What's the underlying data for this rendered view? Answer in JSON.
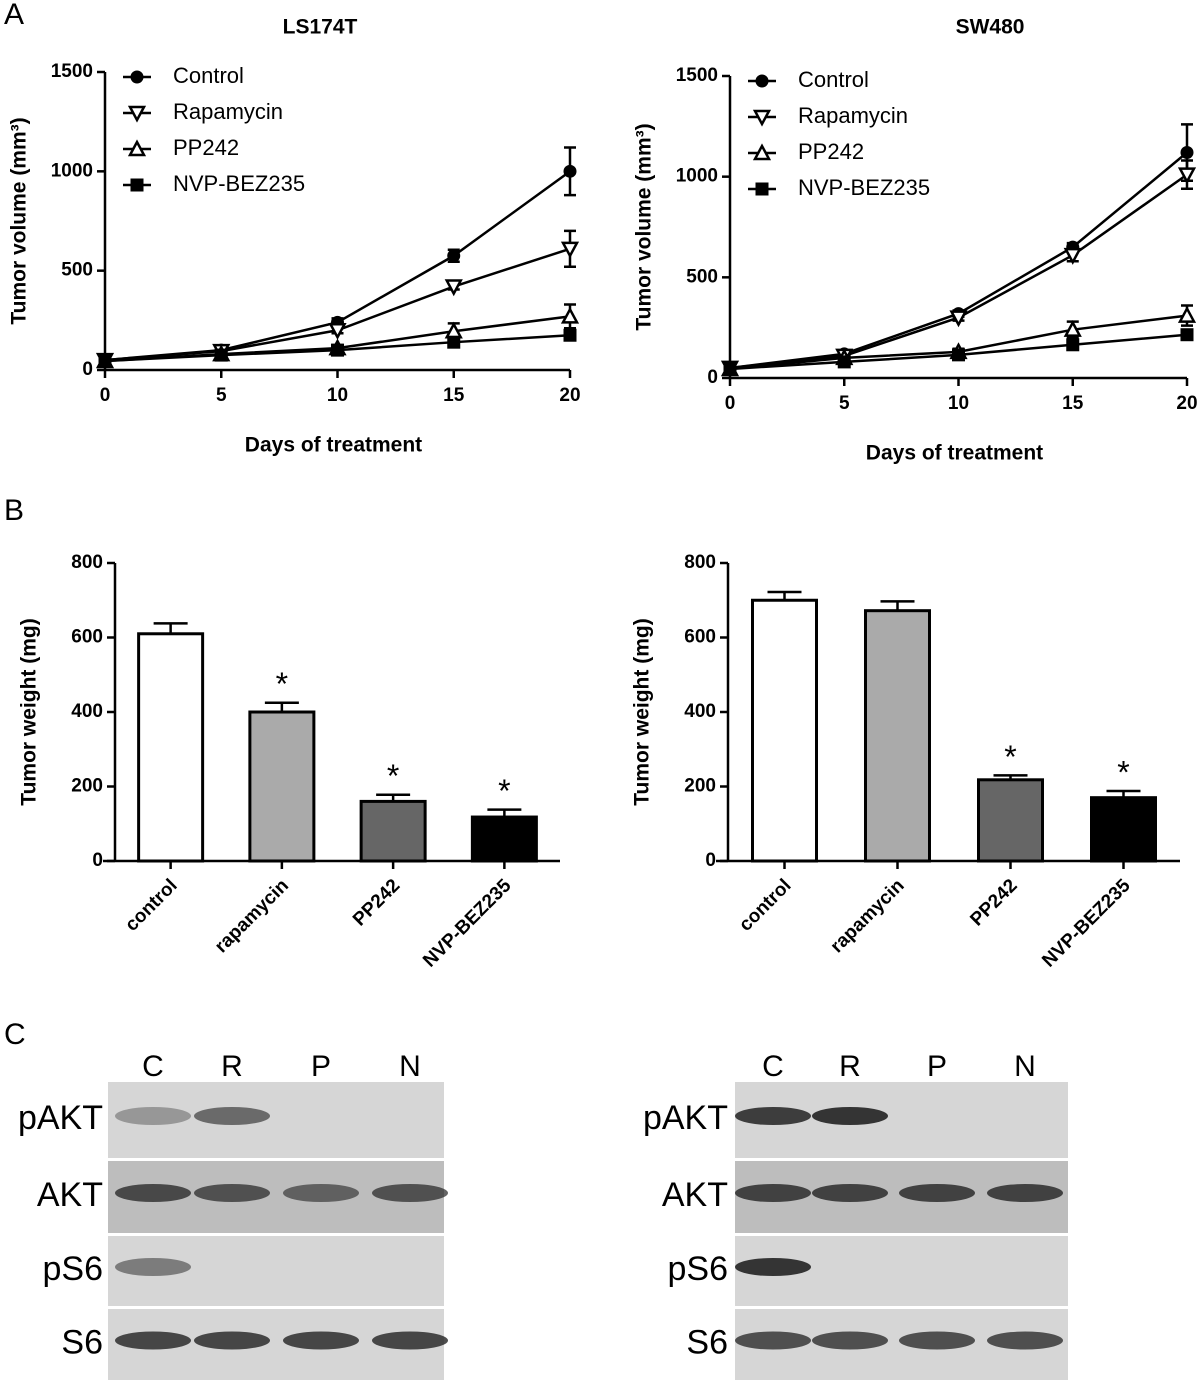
{
  "panel_labels": [
    "A",
    "B",
    "C"
  ],
  "chart_data": [
    {
      "type": "line",
      "title": "LS174T",
      "xlabel": "Days of treatment",
      "ylabel": "Tumor volume (mm³)",
      "x": [
        0,
        5,
        10,
        15,
        20
      ],
      "xlim": [
        0,
        20
      ],
      "xticks": [
        0,
        5,
        10,
        15,
        20
      ],
      "ylim": [
        0,
        1500
      ],
      "yticks": [
        0,
        500,
        1000,
        1500
      ],
      "legend": "upper left",
      "series": [
        {
          "name": "Control",
          "color": "#000000",
          "marker": "circle",
          "values": [
            50,
            100,
            240,
            575,
            1000
          ],
          "errors": [
            10,
            10,
            20,
            30,
            120
          ]
        },
        {
          "name": "Rapamycin",
          "color": "#000000",
          "marker": "triangle-down",
          "values": [
            50,
            95,
            200,
            420,
            610
          ],
          "errors": [
            10,
            10,
            15,
            15,
            90
          ]
        },
        {
          "name": "PP242",
          "color": "#000000",
          "marker": "triangle-up",
          "values": [
            45,
            80,
            110,
            195,
            270
          ],
          "errors": [
            5,
            10,
            15,
            40,
            60
          ]
        },
        {
          "name": "NVP-BEZ235",
          "color": "#000000",
          "marker": "square",
          "values": [
            45,
            75,
            100,
            140,
            175
          ],
          "errors": [
            5,
            10,
            10,
            15,
            20
          ]
        }
      ]
    },
    {
      "type": "line",
      "title": "SW480",
      "xlabel": "Days of treatment",
      "ylabel": "Tumor volume (mm³)",
      "x": [
        0,
        5,
        10,
        15,
        20
      ],
      "xlim": [
        0,
        20
      ],
      "xticks": [
        0,
        5,
        10,
        15,
        20
      ],
      "ylim": [
        0,
        1500
      ],
      "yticks": [
        0,
        500,
        1000,
        1500
      ],
      "legend": "upper left",
      "series": [
        {
          "name": "Control",
          "color": "#000000",
          "marker": "circle",
          "values": [
            50,
            120,
            320,
            650,
            1120
          ],
          "errors": [
            10,
            10,
            15,
            20,
            140
          ]
        },
        {
          "name": "Rapamycin",
          "color": "#000000",
          "marker": "triangle-down",
          "values": [
            50,
            110,
            300,
            610,
            1010
          ],
          "errors": [
            10,
            10,
            15,
            30,
            70
          ]
        },
        {
          "name": "PP242",
          "color": "#000000",
          "marker": "triangle-up",
          "values": [
            45,
            100,
            130,
            240,
            310
          ],
          "errors": [
            5,
            10,
            15,
            40,
            50
          ]
        },
        {
          "name": "NVP-BEZ235",
          "color": "#000000",
          "marker": "square",
          "values": [
            45,
            80,
            115,
            165,
            215
          ],
          "errors": [
            5,
            10,
            10,
            15,
            20
          ]
        }
      ]
    },
    {
      "type": "bar",
      "ylabel": "Tumor weight (mg)",
      "categories": [
        "control",
        "rapamycin",
        "PP242",
        "NVP-BEZ235"
      ],
      "values": [
        610,
        400,
        160,
        118
      ],
      "errors": [
        28,
        25,
        18,
        20
      ],
      "colors": [
        "#ffffff",
        "#aaaaaa",
        "#666666",
        "#000000"
      ],
      "significance": [
        null,
        "*",
        "*",
        "*"
      ],
      "ylim": [
        0,
        800
      ],
      "yticks": [
        0,
        200,
        400,
        600,
        800
      ]
    },
    {
      "type": "bar",
      "ylabel": "Tumor weight (mg)",
      "categories": [
        "control",
        "rapamycin",
        "PP242",
        "NVP-BEZ235"
      ],
      "values": [
        700,
        672,
        218,
        170
      ],
      "errors": [
        22,
        25,
        12,
        18
      ],
      "colors": [
        "#ffffff",
        "#aaaaaa",
        "#666666",
        "#000000"
      ],
      "significance": [
        null,
        null,
        "*",
        "*"
      ],
      "ylim": [
        0,
        800
      ],
      "yticks": [
        0,
        200,
        400,
        600,
        800
      ]
    }
  ],
  "blots": [
    {
      "lanes": [
        "C",
        "R",
        "P",
        "N"
      ],
      "rows": [
        "pAKT",
        "AKT",
        "pS6",
        "S6"
      ]
    },
    {
      "lanes": [
        "C",
        "R",
        "P",
        "N"
      ],
      "rows": [
        "pAKT",
        "AKT",
        "pS6",
        "S6"
      ]
    }
  ]
}
